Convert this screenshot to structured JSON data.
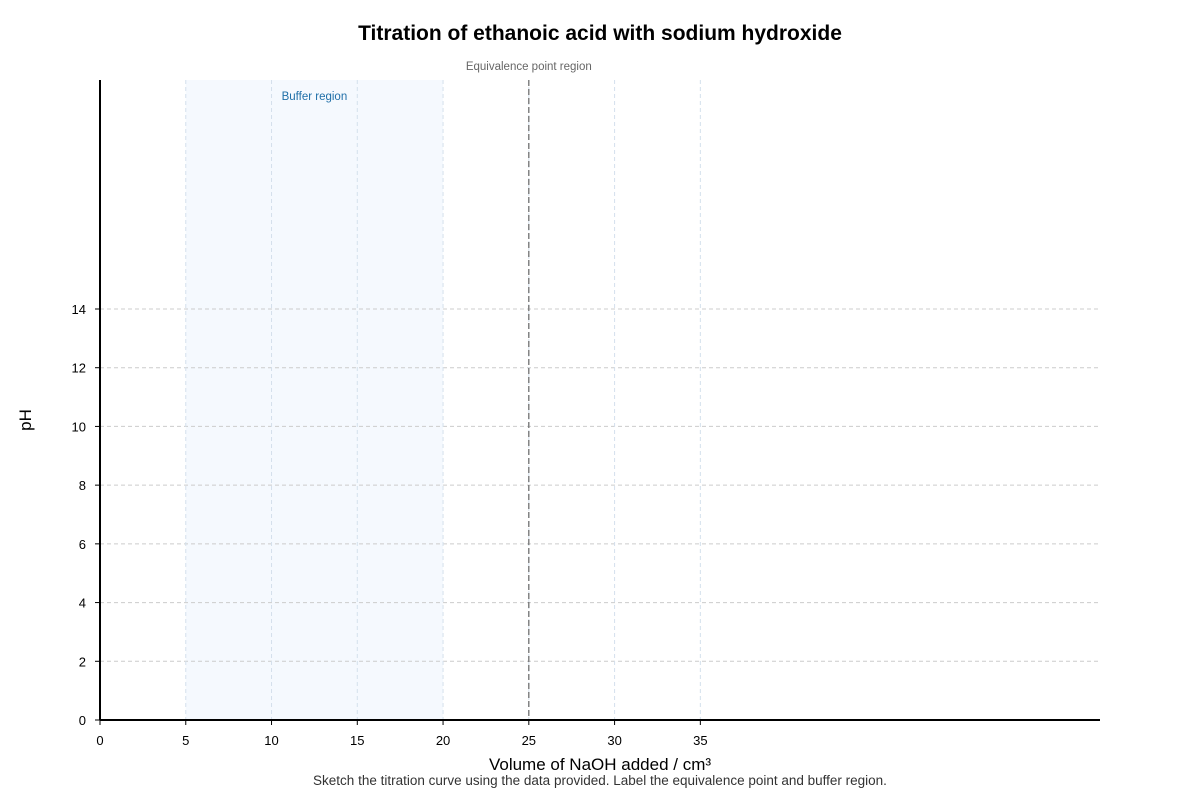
{
  "chart_data": {
    "type": "line",
    "title": "Titration of ethanoic acid with sodium hydroxide",
    "xlabel": "Volume of NaOH added / cm³",
    "ylabel": "pH",
    "caption": "Sketch the titration curve using the data provided. Label the equivalence point and buffer region.",
    "xlim": [
      0,
      58.3
    ],
    "ylim": [
      0,
      21.8
    ],
    "x_ticks": [
      0,
      5,
      10,
      15,
      20,
      25,
      30,
      35
    ],
    "y_ticks": [
      0,
      2,
      4,
      6,
      8,
      10,
      12,
      14
    ],
    "grid": true,
    "series": [
      {
        "values": []
      }
    ],
    "shaded_regions": [
      {
        "label": "Buffer region",
        "x_start": 5,
        "x_end": 20,
        "color": "#f5f9fe"
      }
    ],
    "reference_lines": [
      {
        "label": "Equivalence point region",
        "x": 25,
        "style": "dashed"
      }
    ],
    "colors": {
      "buffer_fill": "#f5f9fe",
      "buffer_label": "#1f6fa8",
      "grid": "#cccccc",
      "axis": "#000000",
      "equivalence_line": "#666666",
      "note": "#666666"
    }
  }
}
